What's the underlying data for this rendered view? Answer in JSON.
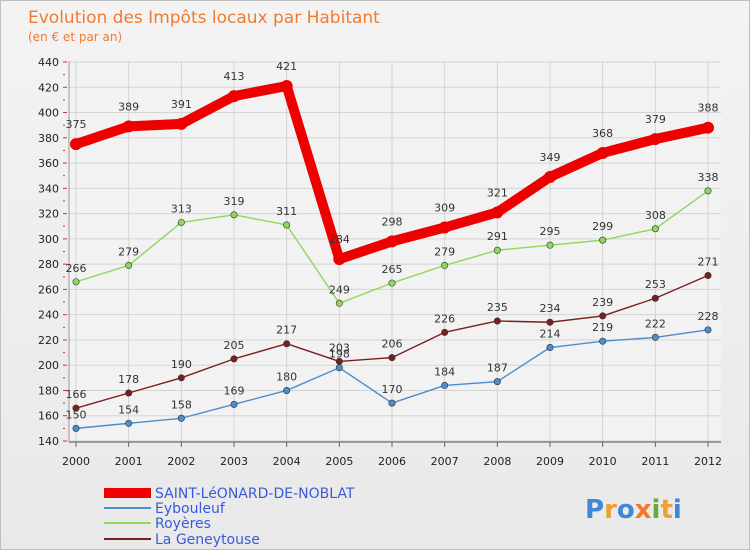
{
  "chart_data": {
    "type": "line",
    "title": "Evolution des Impôts locaux par Habitant",
    "subtitle": "(en € et par an)",
    "x": [
      2000,
      2001,
      2002,
      2003,
      2004,
      2005,
      2006,
      2007,
      2008,
      2009,
      2010,
      2011,
      2012
    ],
    "ylim": [
      140,
      440
    ],
    "yticks": [
      140,
      160,
      180,
      200,
      220,
      240,
      260,
      280,
      300,
      320,
      340,
      360,
      380,
      400,
      420,
      440
    ],
    "grid": true,
    "series": [
      {
        "name": "SAINT-LéONARD-DE-NOBLAT",
        "color": "#ee0000",
        "values": [
          375,
          389,
          391,
          413,
          421,
          284,
          298,
          309,
          321,
          349,
          368,
          379,
          388
        ]
      },
      {
        "name": "Eybouleuf",
        "color": "#4c8dcc",
        "values": [
          150,
          154,
          158,
          169,
          180,
          198,
          170,
          184,
          187,
          214,
          219,
          222,
          228
        ]
      },
      {
        "name": "Royères",
        "color": "#8fd85a",
        "values": [
          266,
          279,
          313,
          319,
          311,
          249,
          265,
          279,
          291,
          295,
          299,
          308,
          338
        ]
      },
      {
        "name": "La Geneytouse",
        "color": "#7a1f1f",
        "values": [
          166,
          178,
          190,
          205,
          217,
          203,
          206,
          226,
          235,
          234,
          239,
          253,
          271
        ]
      }
    ]
  },
  "logo": {
    "text": "Proxiti"
  }
}
